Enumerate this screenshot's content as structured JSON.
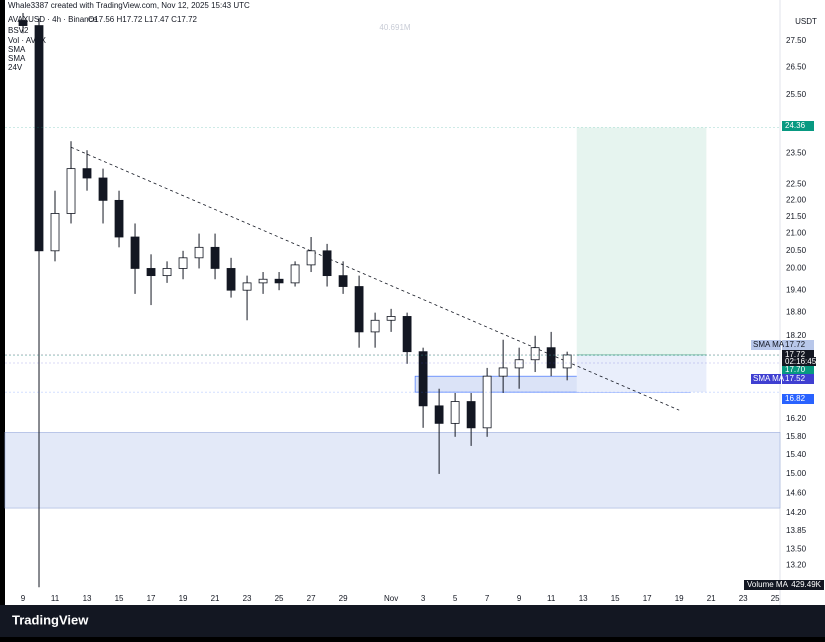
{
  "header": {
    "credit": "Whale3387 created with TradingView.com, Nov 12, 2025 15:43 UTC",
    "symbol": "AVAXUSD · 4h · Binance",
    "ohlc": "O17.56 H17.72 L17.47 C17.72",
    "indicators": [
      "BSV2",
      "Vol · AVAX",
      "SMA",
      "SMA",
      "24V"
    ],
    "watermark": "40.691M",
    "currency": "USDT"
  },
  "chart_data": {
    "type": "candlestick",
    "log_scale": true,
    "xlim": [
      -1.125,
      47.3
    ],
    "xticks": [
      {
        "value": 0,
        "label": "9"
      },
      {
        "value": 2,
        "label": "11"
      },
      {
        "value": 4,
        "label": "13"
      },
      {
        "value": 6,
        "label": "15"
      },
      {
        "value": 8,
        "label": "17"
      },
      {
        "value": 10,
        "label": "19"
      },
      {
        "value": 12,
        "label": "21"
      },
      {
        "value": 14,
        "label": "23"
      },
      {
        "value": 16,
        "label": "25"
      },
      {
        "value": 18,
        "label": "27"
      },
      {
        "value": 20,
        "label": "29"
      },
      {
        "value": 23,
        "label": "Nov"
      },
      {
        "value": 25,
        "label": "3"
      },
      {
        "value": 27,
        "label": "5"
      },
      {
        "value": 29,
        "label": "7"
      },
      {
        "value": 31,
        "label": "9"
      },
      {
        "value": 33,
        "label": "11"
      },
      {
        "value": 35,
        "label": "13"
      },
      {
        "value": 37,
        "label": "15"
      },
      {
        "value": 39,
        "label": "17"
      },
      {
        "value": 41,
        "label": "19"
      },
      {
        "value": 43,
        "label": "21"
      },
      {
        "value": 45,
        "label": "23"
      },
      {
        "value": 47,
        "label": "25"
      }
    ],
    "ylim": [
      12.75,
      28.8
    ],
    "yticks": [
      {
        "value": 27.5,
        "label": "27.50"
      },
      {
        "value": 26.5,
        "label": "26.50"
      },
      {
        "value": 25.5,
        "label": "25.50"
      },
      {
        "value": 23.5,
        "label": "23.50"
      },
      {
        "value": 22.5,
        "label": "22.50"
      },
      {
        "value": 22,
        "label": "22.00"
      },
      {
        "value": 21.5,
        "label": "21.50"
      },
      {
        "value": 21,
        "label": "21.00"
      },
      {
        "value": 20.5,
        "label": "20.50"
      },
      {
        "value": 20,
        "label": "20.00"
      },
      {
        "value": 19.4,
        "label": "19.40"
      },
      {
        "value": 18.8,
        "label": "18.80"
      },
      {
        "value": 18.2,
        "label": "18.20"
      },
      {
        "value": 16.2,
        "label": "16.20"
      },
      {
        "value": 15.8,
        "label": "15.80"
      },
      {
        "value": 15.4,
        "label": "15.40"
      },
      {
        "value": 15,
        "label": "15.00"
      },
      {
        "value": 14.6,
        "label": "14.60"
      },
      {
        "value": 14.2,
        "label": "14.20"
      },
      {
        "value": 13.85,
        "label": "13.85"
      },
      {
        "value": 13.5,
        "label": "13.50"
      },
      {
        "value": 13.2,
        "label": "13.20"
      }
    ],
    "x": [
      0,
      1,
      2,
      3,
      4,
      5,
      6,
      7,
      8,
      9,
      10,
      11,
      12,
      13,
      14,
      15,
      16,
      17,
      18,
      19,
      20,
      21,
      22,
      23,
      24,
      25,
      26,
      27,
      28,
      29,
      30,
      31,
      32,
      33,
      34
    ],
    "open": [
      28.3,
      28.1,
      20.5,
      21.6,
      23.0,
      22.7,
      22.0,
      20.9,
      20.0,
      19.8,
      20.0,
      20.3,
      20.6,
      20.0,
      19.4,
      19.6,
      19.7,
      19.6,
      20.1,
      20.5,
      19.8,
      19.5,
      18.3,
      18.6,
      18.7,
      17.8,
      16.5,
      16.1,
      16.6,
      16.0,
      17.2,
      17.4,
      17.6,
      17.9,
      17.4
    ],
    "high": [
      28.6,
      28.4,
      22.3,
      23.9,
      23.6,
      23.0,
      22.3,
      21.3,
      20.4,
      20.2,
      20.5,
      21.0,
      21.0,
      20.3,
      19.8,
      19.9,
      19.9,
      20.2,
      20.9,
      20.7,
      20.2,
      19.8,
      18.8,
      18.9,
      18.8,
      17.9,
      16.9,
      16.8,
      16.8,
      17.4,
      18.1,
      17.9,
      18.2,
      18.3,
      17.8
    ],
    "low": [
      27.8,
      12.8,
      20.2,
      21.3,
      22.3,
      21.3,
      20.6,
      19.3,
      19.0,
      19.6,
      19.7,
      20.0,
      19.7,
      19.2,
      18.6,
      19.3,
      19.4,
      19.5,
      19.9,
      19.5,
      19.3,
      17.9,
      17.9,
      18.3,
      17.5,
      16.0,
      15.0,
      15.8,
      15.6,
      15.8,
      16.8,
      16.9,
      17.3,
      17.2,
      17.1
    ],
    "close": [
      28.1,
      20.5,
      21.6,
      23.0,
      22.7,
      22.0,
      20.9,
      20.0,
      19.8,
      20.0,
      20.3,
      20.6,
      20.0,
      19.4,
      19.6,
      19.7,
      19.6,
      20.1,
      20.5,
      19.8,
      19.5,
      18.3,
      18.6,
      18.7,
      17.8,
      16.5,
      16.1,
      16.6,
      16.0,
      17.2,
      17.4,
      17.6,
      17.9,
      17.4,
      17.72
    ],
    "up_color": "#ffffff",
    "down_color": "#131722",
    "zone": {
      "low": 14.3,
      "high": 15.9,
      "color": "#e3e9f8"
    },
    "box": {
      "low": 16.82,
      "high": 17.2,
      "x": [
        24.5,
        41.7
      ],
      "color": "#dbe3f7"
    },
    "position": {
      "entry": 17.72,
      "target": 24.36,
      "stop": 16.82,
      "x": [
        34.6,
        42.7
      ]
    },
    "trendline": {
      "x": [
        3,
        41
      ],
      "y": [
        23.7,
        16.4
      ]
    },
    "price_tags": [
      {
        "name": "SMA MA",
        "value": 17.72,
        "label": "17.72",
        "color": "#b8c7ea"
      },
      {
        "value": 17.72,
        "label": "17.72",
        "color": "#131722"
      },
      {
        "value": 17.7,
        "label": "17.70",
        "color": "#089981"
      },
      {
        "name": "SMA MA",
        "value": 17.52,
        "label": "17.52",
        "color": "#3f3fd1"
      },
      {
        "value": 16.82,
        "label": "16.82",
        "color": "#2962ff"
      },
      {
        "value": 24.36,
        "label": "24.36",
        "color": "#089981"
      }
    ],
    "countdown": "02:16:45",
    "volume_ma": "Volume MA",
    "volume_ma_value": "429.49K"
  },
  "footer": {
    "brand": "TradingView"
  }
}
